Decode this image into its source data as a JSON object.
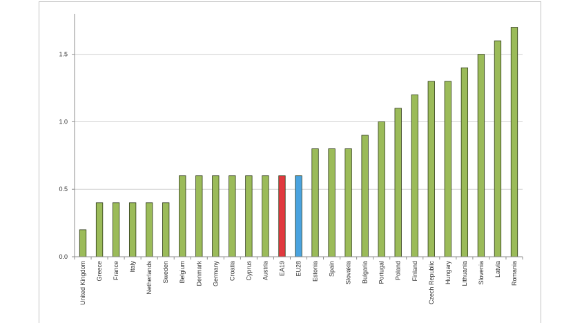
{
  "chart_data": {
    "type": "bar",
    "categories": [
      "United Kingdom",
      "Greece",
      "France",
      "Italy",
      "Netherlands",
      "Sweden",
      "Belgium",
      "Denmark",
      "Germany",
      "Croatia",
      "Cyprus",
      "Austria",
      "EA19",
      "EU28",
      "Estonia",
      "Spain",
      "Slovakia",
      "Bulgaria",
      "Portugal",
      "Poland",
      "Finland",
      "Czech Republic",
      "Hungary",
      "Lithuania",
      "Slovenia",
      "Latvia",
      "Romania"
    ],
    "values": [
      0.2,
      0.4,
      0.4,
      0.4,
      0.4,
      0.4,
      0.6,
      0.6,
      0.6,
      0.6,
      0.6,
      0.6,
      0.6,
      0.6,
      0.8,
      0.8,
      0.8,
      0.9,
      1.0,
      1.1,
      1.2,
      1.3,
      1.3,
      1.4,
      1.5,
      1.6,
      1.7
    ],
    "bar_colors": [
      "#9bbb59",
      "#9bbb59",
      "#9bbb59",
      "#9bbb59",
      "#9bbb59",
      "#9bbb59",
      "#9bbb59",
      "#9bbb59",
      "#9bbb59",
      "#9bbb59",
      "#9bbb59",
      "#9bbb59",
      "#e0393e",
      "#4aa3df",
      "#9bbb59",
      "#9bbb59",
      "#9bbb59",
      "#9bbb59",
      "#9bbb59",
      "#9bbb59",
      "#9bbb59",
      "#9bbb59",
      "#9bbb59",
      "#9bbb59",
      "#9bbb59",
      "#9bbb59",
      "#9bbb59"
    ],
    "yticks": [
      "0.0",
      "0.5",
      "1.0",
      "1.5"
    ],
    "ytick_values": [
      0,
      0.5,
      1.0,
      1.5
    ],
    "ylim": [
      0,
      1.8
    ],
    "grid": true,
    "legend": "none",
    "title": "",
    "xlabel": "",
    "ylabel": ""
  }
}
